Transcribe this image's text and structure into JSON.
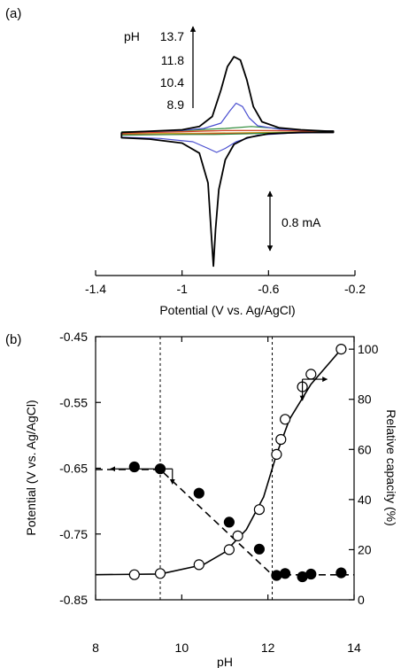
{
  "chart_data": [
    {
      "panel": "(a)",
      "type": "line",
      "xlabel": "Potential (V vs. Ag/AgCl)",
      "ylabel": "",
      "xlim": [
        -1.4,
        -0.2
      ],
      "x_ticks": [
        -1.4,
        -1.0,
        -0.6,
        -0.2
      ],
      "x_tick_labels": [
        "-1.4",
        "-1",
        "-0.6",
        "-0.2"
      ],
      "grid": false,
      "annotations": {
        "ph_prefix": "pH",
        "ph_values": [
          "13.7",
          "11.8",
          "10.4",
          "8.9"
        ],
        "scale_bar": "0.8 mA"
      },
      "series": [
        {
          "color": "#000000",
          "anodic": [
            [
              -1.28,
              0.06
            ],
            [
              -1.0,
              0.1
            ],
            [
              -0.92,
              0.15
            ],
            [
              -0.86,
              0.3
            ],
            [
              -0.82,
              0.7
            ],
            [
              -0.79,
              1.05
            ],
            [
              -0.76,
              1.2
            ],
            [
              -0.73,
              1.15
            ],
            [
              -0.7,
              0.85
            ],
            [
              -0.67,
              0.45
            ],
            [
              -0.63,
              0.22
            ],
            [
              -0.55,
              0.13
            ],
            [
              -0.45,
              0.1
            ],
            [
              -0.33,
              0.08
            ],
            [
              -0.3,
              0.08
            ]
          ],
          "cathodic": [
            [
              -0.3,
              0.06
            ],
            [
              -0.45,
              0.06
            ],
            [
              -0.6,
              0.04
            ],
            [
              -0.7,
              -0.02
            ],
            [
              -0.76,
              -0.12
            ],
            [
              -0.8,
              -0.35
            ],
            [
              -0.83,
              -0.8
            ],
            [
              -0.845,
              -1.4
            ],
            [
              -0.855,
              -1.95
            ],
            [
              -0.865,
              -1.45
            ],
            [
              -0.88,
              -0.7
            ],
            [
              -0.92,
              -0.25
            ],
            [
              -1.0,
              -0.1
            ],
            [
              -1.15,
              -0.04
            ],
            [
              -1.28,
              -0.02
            ]
          ]
        },
        {
          "color": "#4a4fd0",
          "anodic": [
            [
              -1.28,
              0.06
            ],
            [
              -1.0,
              0.09
            ],
            [
              -0.9,
              0.12
            ],
            [
              -0.82,
              0.2
            ],
            [
              -0.78,
              0.38
            ],
            [
              -0.75,
              0.5
            ],
            [
              -0.72,
              0.45
            ],
            [
              -0.69,
              0.28
            ],
            [
              -0.65,
              0.16
            ],
            [
              -0.55,
              0.11
            ],
            [
              -0.4,
              0.09
            ],
            [
              -0.3,
              0.08
            ]
          ],
          "cathodic": [
            [
              -0.3,
              0.06
            ],
            [
              -0.5,
              0.05
            ],
            [
              -0.65,
              0.02
            ],
            [
              -0.75,
              -0.08
            ],
            [
              -0.8,
              -0.18
            ],
            [
              -0.84,
              -0.24
            ],
            [
              -0.88,
              -0.18
            ],
            [
              -0.95,
              -0.08
            ],
            [
              -1.1,
              -0.03
            ],
            [
              -1.28,
              -0.01
            ]
          ]
        },
        {
          "color": "#2e8b3a",
          "anodic": [
            [
              -1.28,
              0.07
            ],
            [
              -1.0,
              0.09
            ],
            [
              -0.8,
              0.12
            ],
            [
              -0.68,
              0.15
            ],
            [
              -0.55,
              0.12
            ],
            [
              -0.4,
              0.09
            ],
            [
              -0.3,
              0.08
            ]
          ],
          "cathodic": [
            [
              -0.3,
              0.07
            ],
            [
              -0.5,
              0.06
            ],
            [
              -0.7,
              0.04
            ],
            [
              -0.85,
              0.03
            ],
            [
              -1.0,
              0.03
            ],
            [
              -1.28,
              0.02
            ]
          ]
        },
        {
          "color": "#d63a2a",
          "anodic": [
            [
              -1.28,
              0.05
            ],
            [
              -1.0,
              0.07
            ],
            [
              -0.8,
              0.09
            ],
            [
              -0.6,
              0.09
            ],
            [
              -0.4,
              0.08
            ],
            [
              -0.3,
              0.07
            ]
          ],
          "cathodic": [
            [
              -0.3,
              0.06
            ],
            [
              -0.6,
              0.05
            ],
            [
              -0.85,
              0.04
            ],
            [
              -1.05,
              0.03
            ],
            [
              -1.28,
              0.03
            ]
          ]
        },
        {
          "color": "#c8a020",
          "anodic": [
            [
              -1.28,
              0.06
            ],
            [
              -1.0,
              0.08
            ],
            [
              -0.75,
              0.09
            ],
            [
              -0.5,
              0.085
            ],
            [
              -0.3,
              0.075
            ]
          ],
          "cathodic": [
            [
              -0.3,
              0.07
            ],
            [
              -0.6,
              0.06
            ],
            [
              -0.9,
              0.05
            ],
            [
              -1.28,
              0.04
            ]
          ]
        }
      ]
    },
    {
      "panel": "(b)",
      "type": "scatter",
      "xlabel": "pH",
      "ylabel": "Potential (V vs. Ag/AgCl)",
      "y2label": "Relative capacity (%)",
      "xlim": [
        8,
        14
      ],
      "ylim": [
        -0.85,
        -0.45
      ],
      "y2lim": [
        0,
        105
      ],
      "x_ticks": [
        8,
        10,
        12,
        14
      ],
      "x_tick_labels": [
        "8",
        "10",
        "12",
        "14"
      ],
      "y_ticks": [
        -0.85,
        -0.75,
        -0.65,
        -0.55,
        -0.45
      ],
      "y_tick_labels": [
        "-0.85",
        "-0.75",
        "-0.65",
        "-0.55",
        "-0.45"
      ],
      "y2_ticks": [
        0,
        20,
        40,
        60,
        80,
        100
      ],
      "y2_tick_labels": [
        "0",
        "20",
        "40",
        "60",
        "80",
        "100"
      ],
      "vlines": [
        9.5,
        12.1
      ],
      "grid": false,
      "series": [
        {
          "axis": "left",
          "marker": "filled-circle",
          "x": [
            8.9,
            9.5,
            10.4,
            11.1,
            11.8,
            12.2,
            12.4,
            12.8,
            13.0,
            13.7
          ],
          "y": [
            -0.648,
            -0.651,
            -0.688,
            -0.732,
            -0.773,
            -0.813,
            -0.81,
            -0.815,
            -0.811,
            -0.809
          ]
        },
        {
          "axis": "left",
          "marker": "dashed-fit",
          "x": [
            8.0,
            9.5,
            12.1,
            14.0
          ],
          "y": [
            -0.652,
            -0.652,
            -0.812,
            -0.812
          ]
        },
        {
          "axis": "right",
          "marker": "open-circle",
          "x": [
            8.9,
            9.5,
            10.4,
            11.1,
            11.3,
            11.8,
            12.2,
            12.3,
            12.4,
            12.8,
            13.0,
            13.7
          ],
          "y": [
            10,
            10.5,
            14,
            20,
            25.5,
            36,
            58,
            64,
            72,
            85,
            90,
            100
          ]
        },
        {
          "axis": "right",
          "marker": "solid-fit",
          "x": [
            8.0,
            9.5,
            10.5,
            11.0,
            11.5,
            11.9,
            12.2,
            12.5,
            13.0,
            13.5,
            13.7
          ],
          "y": [
            10,
            10.3,
            14,
            19,
            28,
            41,
            58,
            72,
            86,
            96,
            100
          ]
        }
      ],
      "arrows": [
        {
          "x": 8.92,
          "y": -0.651,
          "dir": "left-down",
          "axis": "left"
        },
        {
          "x": 12.8,
          "y2": 88,
          "dir": "right-down",
          "axis": "right"
        }
      ]
    }
  ]
}
